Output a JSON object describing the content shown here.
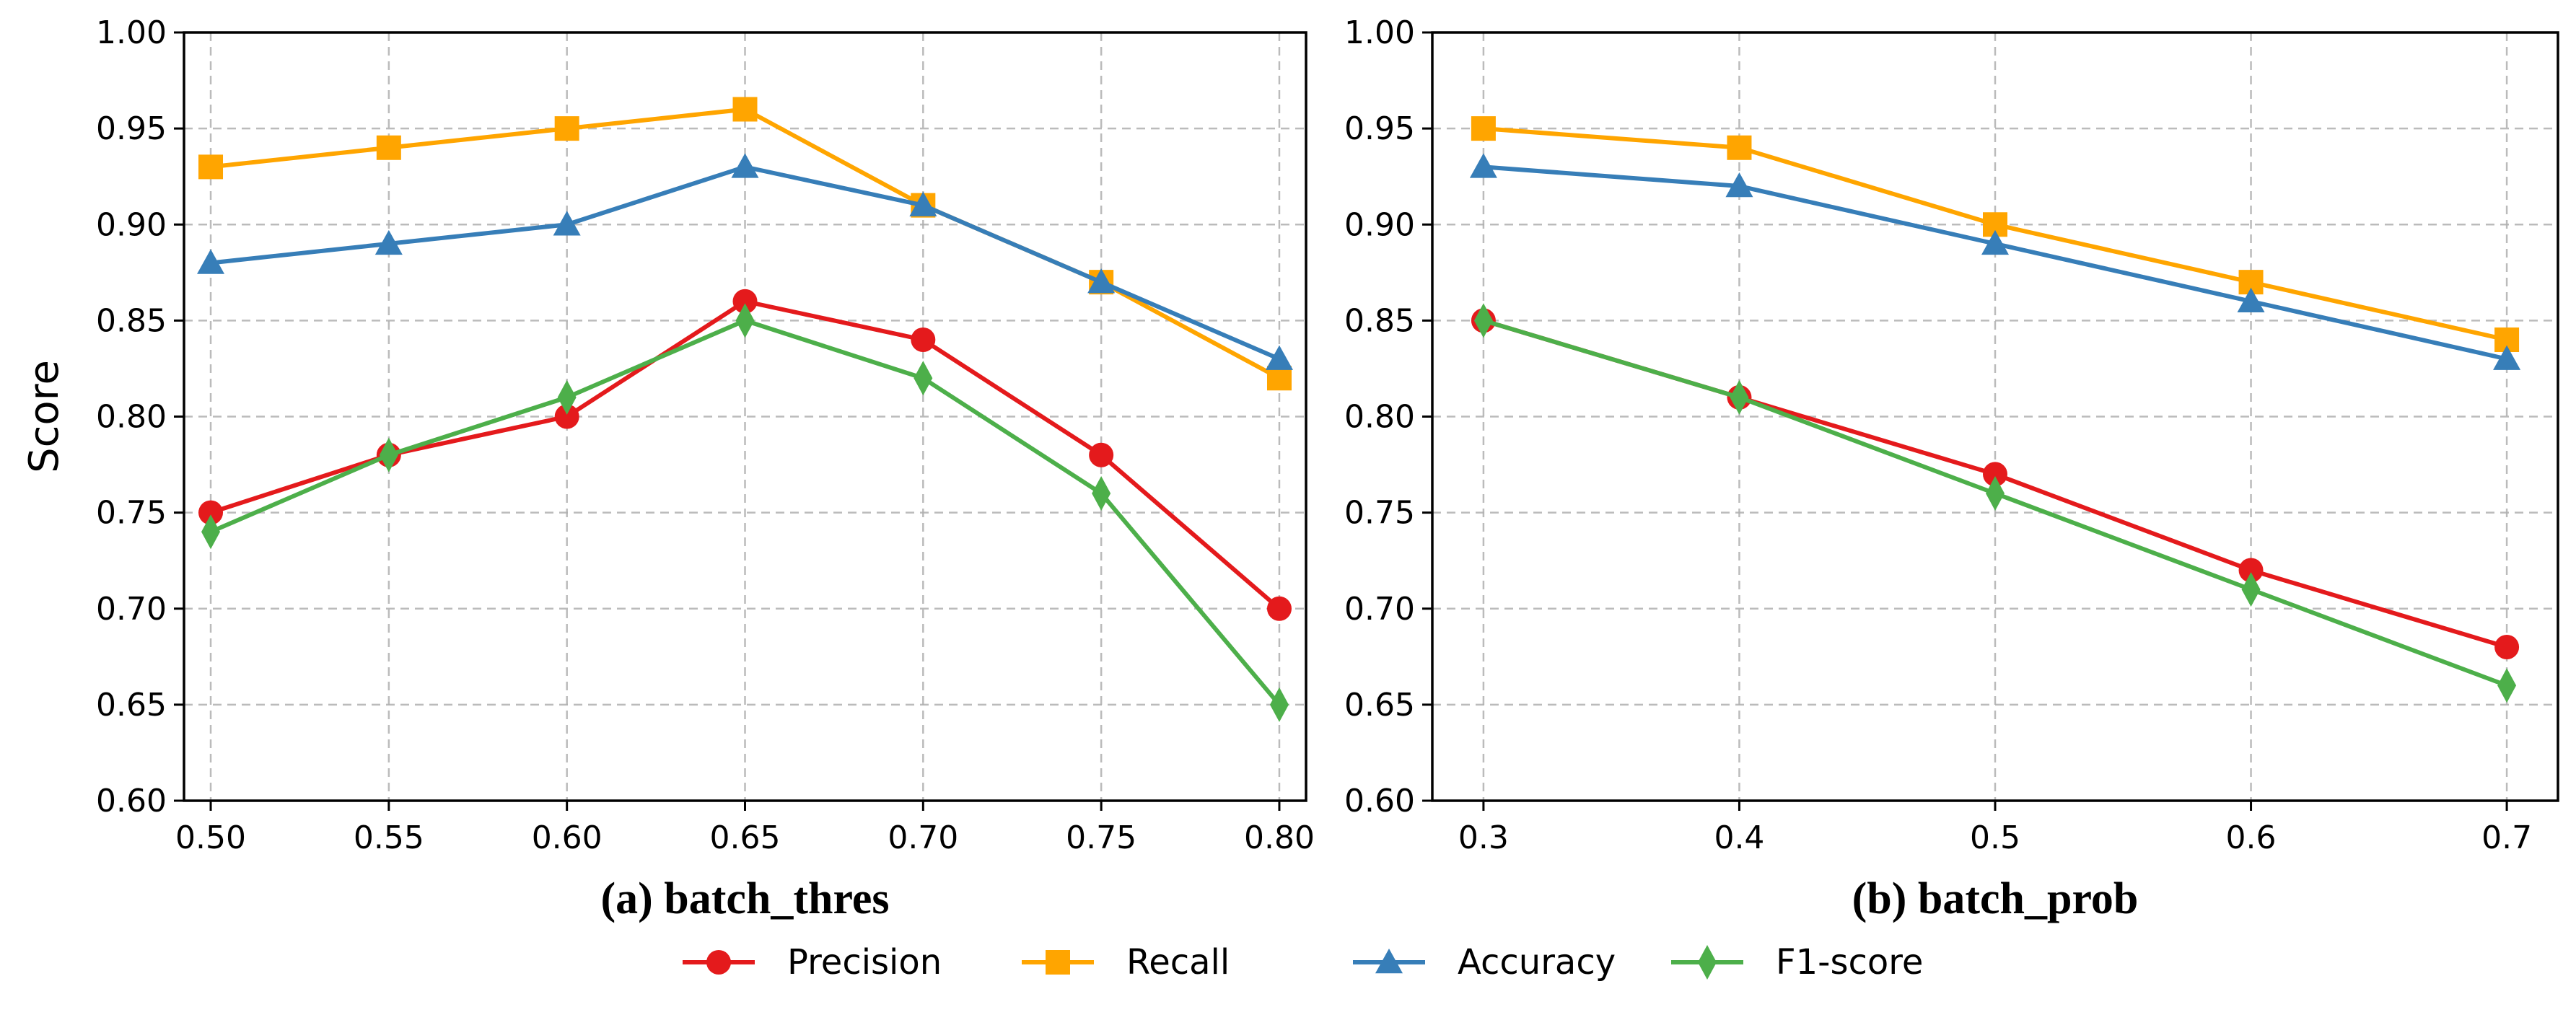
{
  "chart_data": [
    {
      "type": "line",
      "caption": "(a) batch_thres",
      "ylabel": "Score",
      "xlabel": "",
      "x": [
        0.5,
        0.55,
        0.6,
        0.65,
        0.7,
        0.75,
        0.8
      ],
      "x_tick_labels": [
        "0.50",
        "0.55",
        "0.60",
        "0.65",
        "0.70",
        "0.75",
        "0.80"
      ],
      "xlim": [
        0.4925,
        0.8075
      ],
      "ylim": [
        0.6,
        1.0
      ],
      "y_ticks": [
        0.6,
        0.65,
        0.7,
        0.75,
        0.8,
        0.85,
        0.9,
        0.95,
        1.0
      ],
      "y_tick_labels": [
        "0.60",
        "0.65",
        "0.70",
        "0.75",
        "0.80",
        "0.85",
        "0.90",
        "0.95",
        "1.00"
      ],
      "grid": true,
      "series": [
        {
          "name": "Precision",
          "values": [
            0.75,
            0.78,
            0.8,
            0.86,
            0.84,
            0.78,
            0.7
          ]
        },
        {
          "name": "Recall",
          "values": [
            0.93,
            0.94,
            0.95,
            0.96,
            0.91,
            0.87,
            0.82
          ]
        },
        {
          "name": "Accuracy",
          "values": [
            0.88,
            0.89,
            0.9,
            0.93,
            0.91,
            0.87,
            0.83
          ]
        },
        {
          "name": "F1-score",
          "values": [
            0.74,
            0.78,
            0.81,
            0.85,
            0.82,
            0.76,
            0.65
          ]
        }
      ]
    },
    {
      "type": "line",
      "caption": "(b) batch_prob",
      "ylabel": "",
      "xlabel": "",
      "x": [
        0.3,
        0.4,
        0.5,
        0.6,
        0.7
      ],
      "x_tick_labels": [
        "0.3",
        "0.4",
        "0.5",
        "0.6",
        "0.7"
      ],
      "xlim": [
        0.28,
        0.72
      ],
      "ylim": [
        0.6,
        1.0
      ],
      "y_ticks": [
        0.6,
        0.65,
        0.7,
        0.75,
        0.8,
        0.85,
        0.9,
        0.95,
        1.0
      ],
      "y_tick_labels": [
        "0.60",
        "0.65",
        "0.70",
        "0.75",
        "0.80",
        "0.85",
        "0.90",
        "0.95",
        "1.00"
      ],
      "grid": true,
      "series": [
        {
          "name": "Precision",
          "values": [
            0.85,
            0.81,
            0.77,
            0.72,
            0.68
          ]
        },
        {
          "name": "Recall",
          "values": [
            0.95,
            0.94,
            0.9,
            0.87,
            0.84
          ]
        },
        {
          "name": "Accuracy",
          "values": [
            0.93,
            0.92,
            0.89,
            0.86,
            0.83
          ]
        },
        {
          "name": "F1-score",
          "values": [
            0.85,
            0.81,
            0.76,
            0.71,
            0.66
          ]
        }
      ]
    }
  ],
  "legend": {
    "placement": "bottom-center",
    "entries": [
      {
        "name": "Precision",
        "color": "#e41a1c",
        "marker": "circle"
      },
      {
        "name": "Recall",
        "color": "#ffa500",
        "marker": "square"
      },
      {
        "name": "Accuracy",
        "color": "#377eb8",
        "marker": "triangle"
      },
      {
        "name": "F1-score",
        "color": "#4daf4a",
        "marker": "diamond"
      }
    ]
  },
  "colors": {
    "Precision": "#e41a1c",
    "Recall": "#ffa500",
    "Accuracy": "#377eb8",
    "F1-score": "#4daf4a"
  }
}
